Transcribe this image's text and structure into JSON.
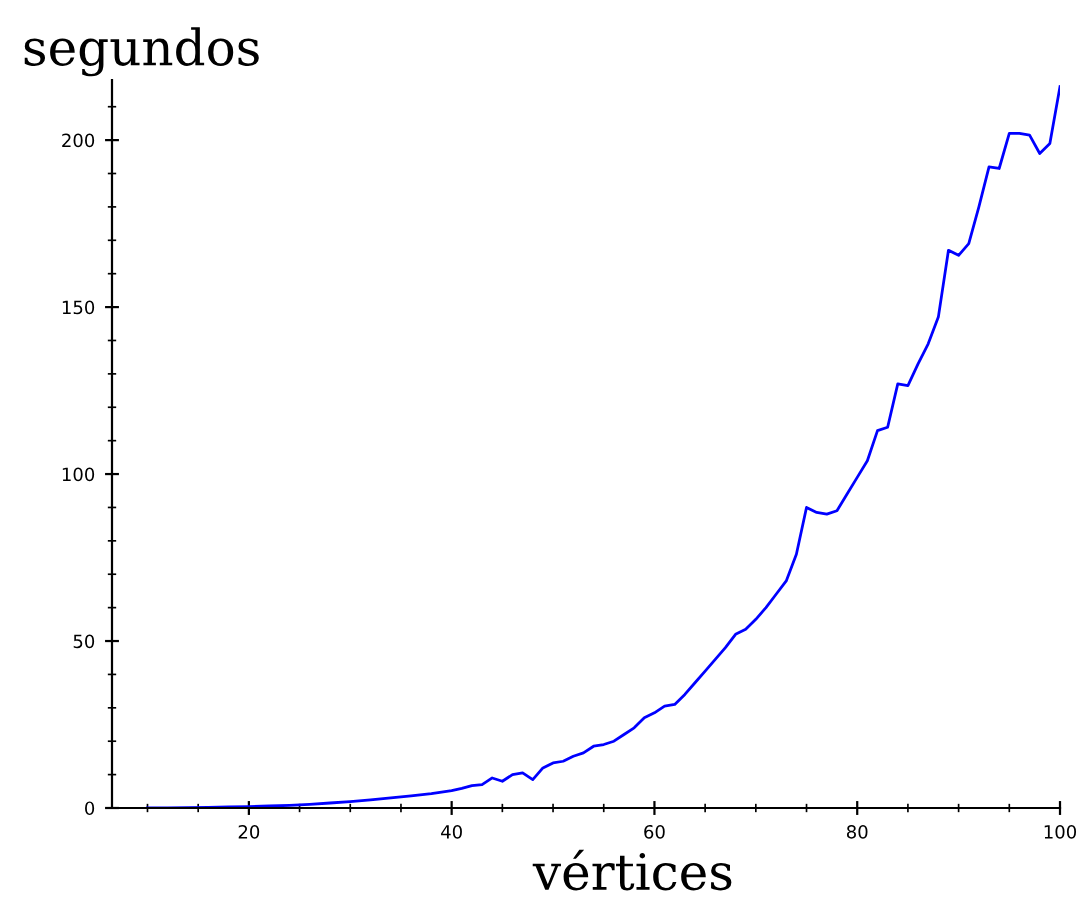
{
  "chart_data": {
    "type": "line",
    "xlabel": "vértices",
    "ylabel": "segundos",
    "x": [
      10,
      12,
      14,
      16,
      18,
      20,
      22,
      24,
      26,
      28,
      30,
      32,
      34,
      36,
      38,
      40,
      41,
      42,
      43,
      44,
      45,
      46,
      47,
      48,
      49,
      50,
      51,
      52,
      53,
      54,
      55,
      56,
      57,
      58,
      59,
      60,
      61,
      62,
      63,
      64,
      65,
      66,
      67,
      68,
      69,
      70,
      71,
      72,
      73,
      74,
      75,
      76,
      77,
      78,
      79,
      80,
      81,
      82,
      83,
      84,
      85,
      86,
      87,
      88,
      89,
      90,
      91,
      92,
      93,
      94,
      95,
      96,
      97,
      98,
      99,
      100
    ],
    "series": [
      {
        "color": "#0000ff",
        "values": [
          0,
          0,
          0.1,
          0.2,
          0.3,
          0.4,
          0.6,
          0.8,
          1.1,
          1.5,
          1.9,
          2.4,
          3,
          3.6,
          4.3,
          5.2,
          5.9,
          6.7,
          7,
          9,
          8,
          10,
          10.5,
          8.5,
          12,
          13.5,
          14,
          15.5,
          16.5,
          18.5,
          19,
          20,
          22,
          24,
          27,
          28.5,
          30.5,
          31,
          34,
          37.5,
          41,
          44.5,
          48,
          52,
          53.5,
          56.5,
          60,
          64,
          68,
          76,
          90,
          88.5,
          88,
          89,
          94,
          99,
          104,
          113,
          114,
          127,
          126.5,
          133,
          139,
          147,
          167,
          165.5,
          169,
          180,
          192,
          191.5,
          202,
          202,
          201.5,
          196,
          199,
          216
        ]
      }
    ],
    "xlim": [
      6.5,
      100
    ],
    "ylim": [
      0,
      218
    ],
    "xticks": [
      20,
      40,
      60,
      80,
      100
    ],
    "yticks": [
      0,
      50,
      100,
      150,
      200
    ],
    "grid": false,
    "legend": false,
    "marker": "none",
    "line_style": "solid"
  }
}
